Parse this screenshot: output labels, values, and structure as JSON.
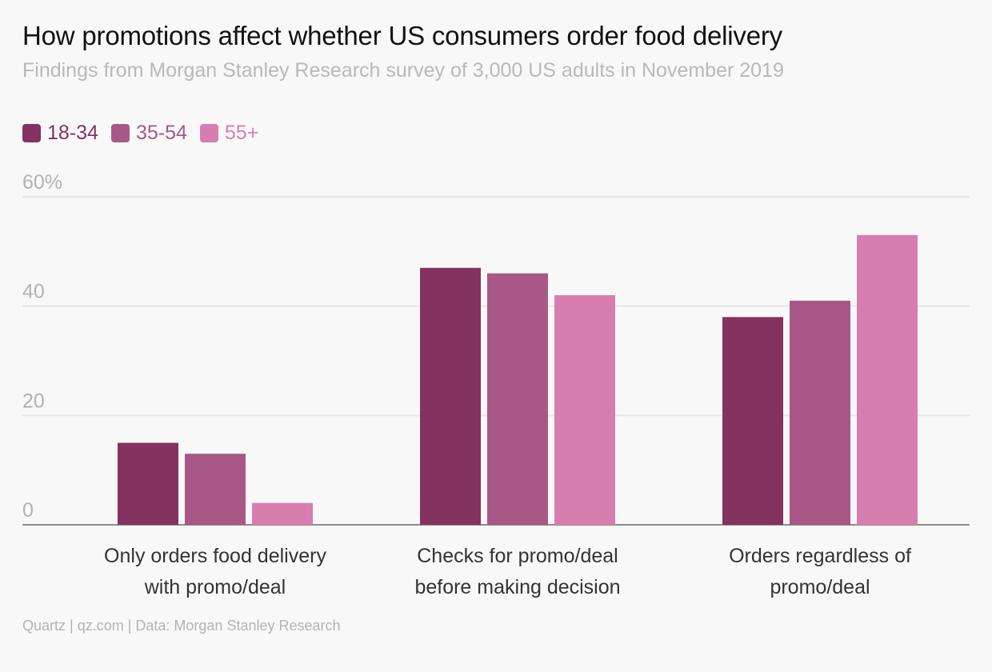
{
  "chart_data": {
    "type": "bar",
    "title": "How promotions affect whether US consumers order food delivery",
    "subtitle": "Findings from Morgan Stanley Research survey of 3,000 US adults in November 2019",
    "categories": [
      [
        "Only orders food delivery",
        "with promo/deal"
      ],
      [
        "Checks for promo/deal",
        "before making decision"
      ],
      [
        "Orders regardless of",
        "promo/deal"
      ]
    ],
    "series": [
      {
        "name": "18-34",
        "color": "#84325f",
        "values": [
          15,
          47,
          38
        ]
      },
      {
        "name": "35-54",
        "color": "#a95787",
        "values": [
          13,
          46,
          41
        ]
      },
      {
        "name": "55+",
        "color": "#d87daf",
        "values": [
          4,
          42,
          53
        ]
      }
    ],
    "yticks": [
      {
        "value": 0,
        "label": "0"
      },
      {
        "value": 20,
        "label": "20"
      },
      {
        "value": 40,
        "label": "40"
      },
      {
        "value": 60,
        "label": "60%"
      }
    ],
    "ylim": [
      0,
      60
    ],
    "legend_position": "top-left",
    "grid": true
  },
  "source": "Quartz | qz.com | Data: Morgan Stanley Research"
}
